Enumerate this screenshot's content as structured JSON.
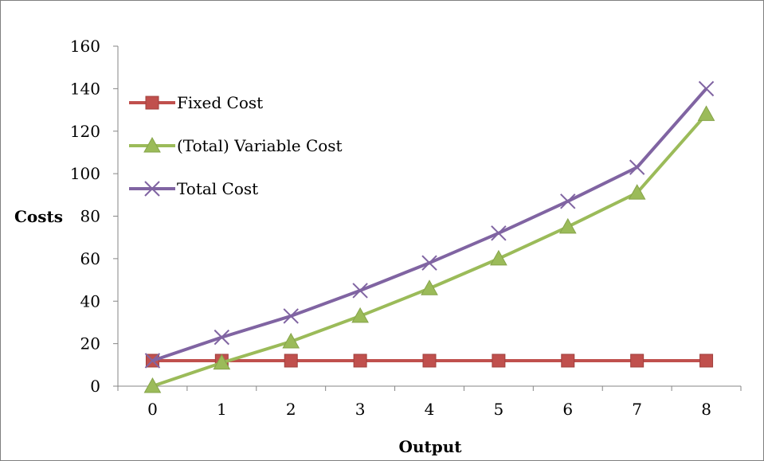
{
  "chart_data": {
    "type": "line",
    "title": "",
    "xlabel": "Output",
    "ylabel": "Costs",
    "x": [
      0,
      1,
      2,
      3,
      4,
      5,
      6,
      7,
      8
    ],
    "x_tick_labels": [
      "0",
      "1",
      "2",
      "3",
      "4",
      "5",
      "6",
      "7",
      "8"
    ],
    "ylim": [
      0,
      160
    ],
    "y_ticks": [
      0,
      20,
      40,
      60,
      80,
      100,
      120,
      140,
      160
    ],
    "y_tick_labels": [
      "0",
      "20",
      "40",
      "60",
      "80",
      "100",
      "120",
      "140",
      "160"
    ],
    "grid": false,
    "legend_position": "top-left",
    "series": [
      {
        "name": "Fixed Cost",
        "color": "#C0504D",
        "marker": "square",
        "values": [
          12,
          12,
          12,
          12,
          12,
          12,
          12,
          12,
          12
        ]
      },
      {
        "name": "(Total) Variable Cost",
        "color": "#9BBB59",
        "marker": "triangle",
        "values": [
          0,
          11,
          21,
          33,
          46,
          60,
          75,
          91,
          128
        ]
      },
      {
        "name": "Total Cost",
        "color": "#8064A2",
        "marker": "x",
        "values": [
          12,
          23,
          33,
          45,
          58,
          72,
          87,
          103,
          140
        ]
      }
    ]
  }
}
